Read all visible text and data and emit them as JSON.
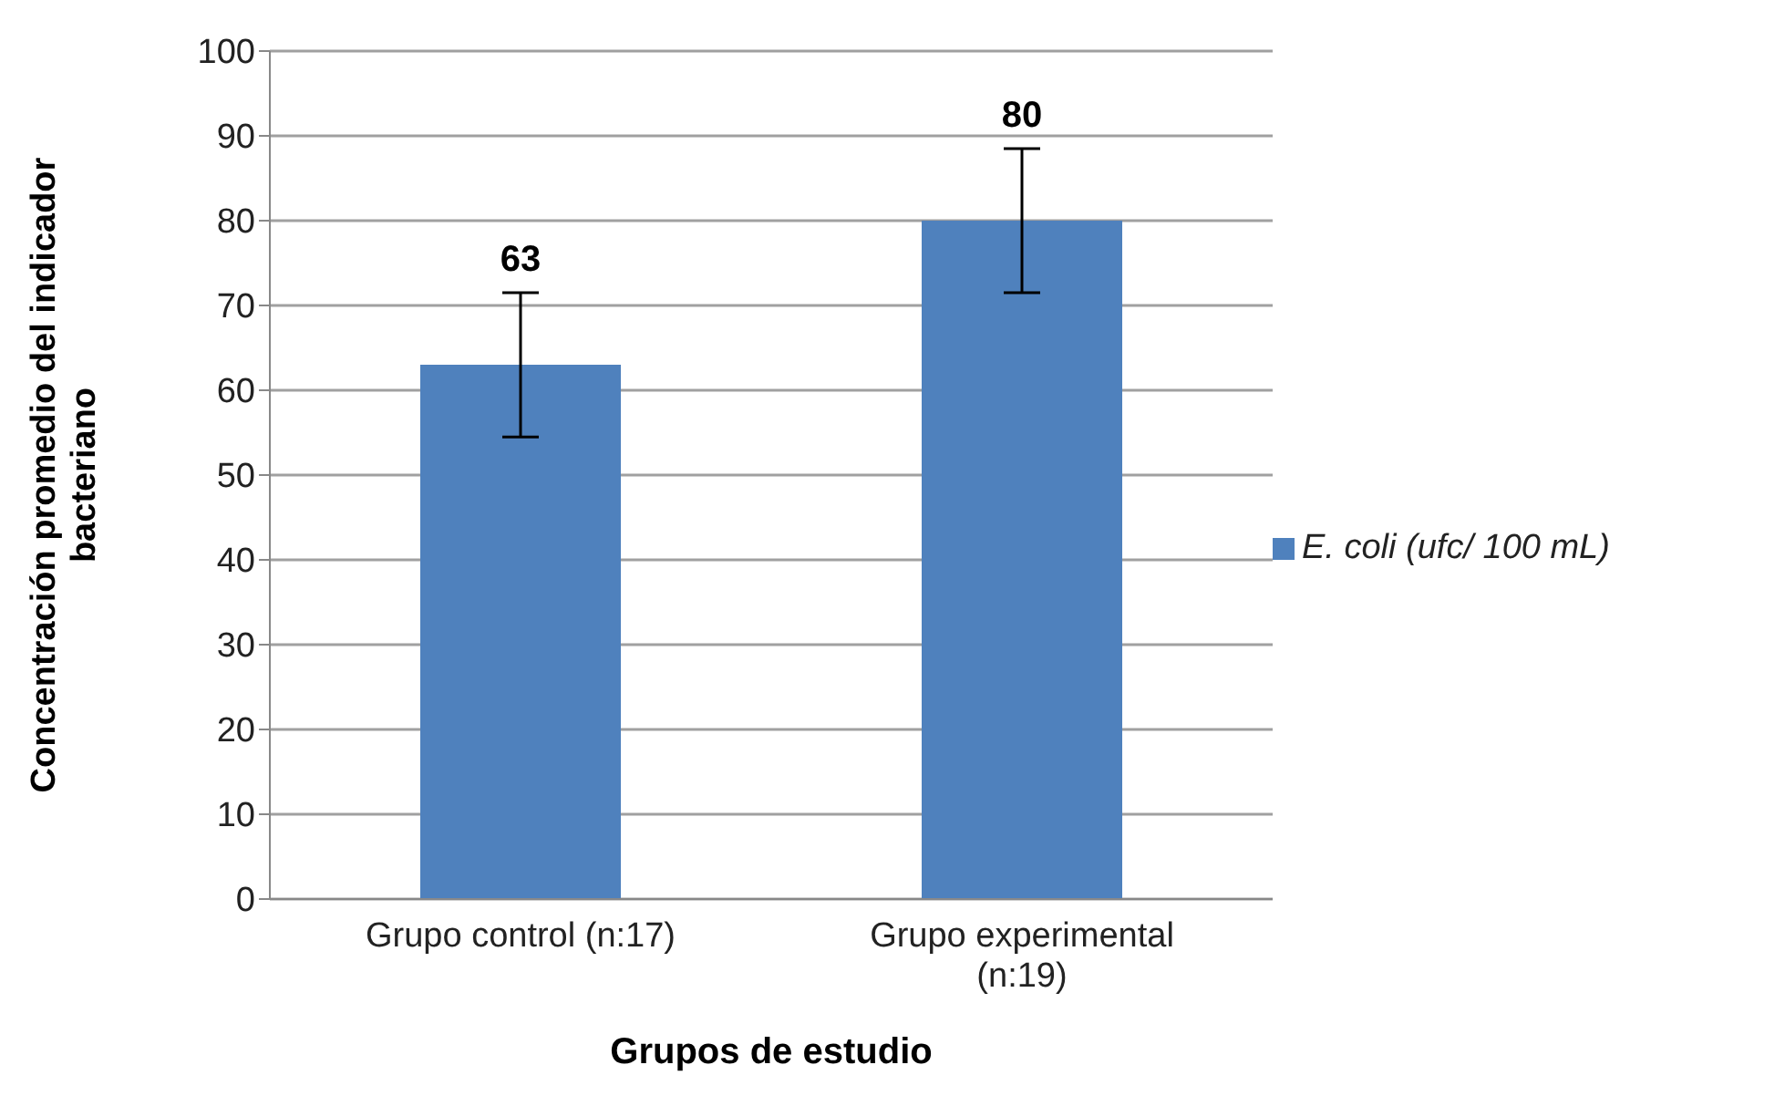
{
  "chart_data": {
    "type": "bar",
    "xlabel": "Grupos de estudio",
    "ylabel": "Concentración promedio del indicador bacteriano",
    "categories": [
      "Grupo control (n:17)",
      "Grupo experimental (n:19)"
    ],
    "series": [
      {
        "name": "E. coli (ufc/ 100 mL)",
        "color": "#4f81bd",
        "values": [
          63,
          80
        ],
        "errors": [
          8.5,
          8.5
        ]
      }
    ],
    "ylim": [
      0,
      100
    ],
    "yticks": [
      0,
      10,
      20,
      30,
      40,
      50,
      60,
      70,
      80,
      90,
      100
    ],
    "grid": "y",
    "legend": "right",
    "data_labels": true
  }
}
